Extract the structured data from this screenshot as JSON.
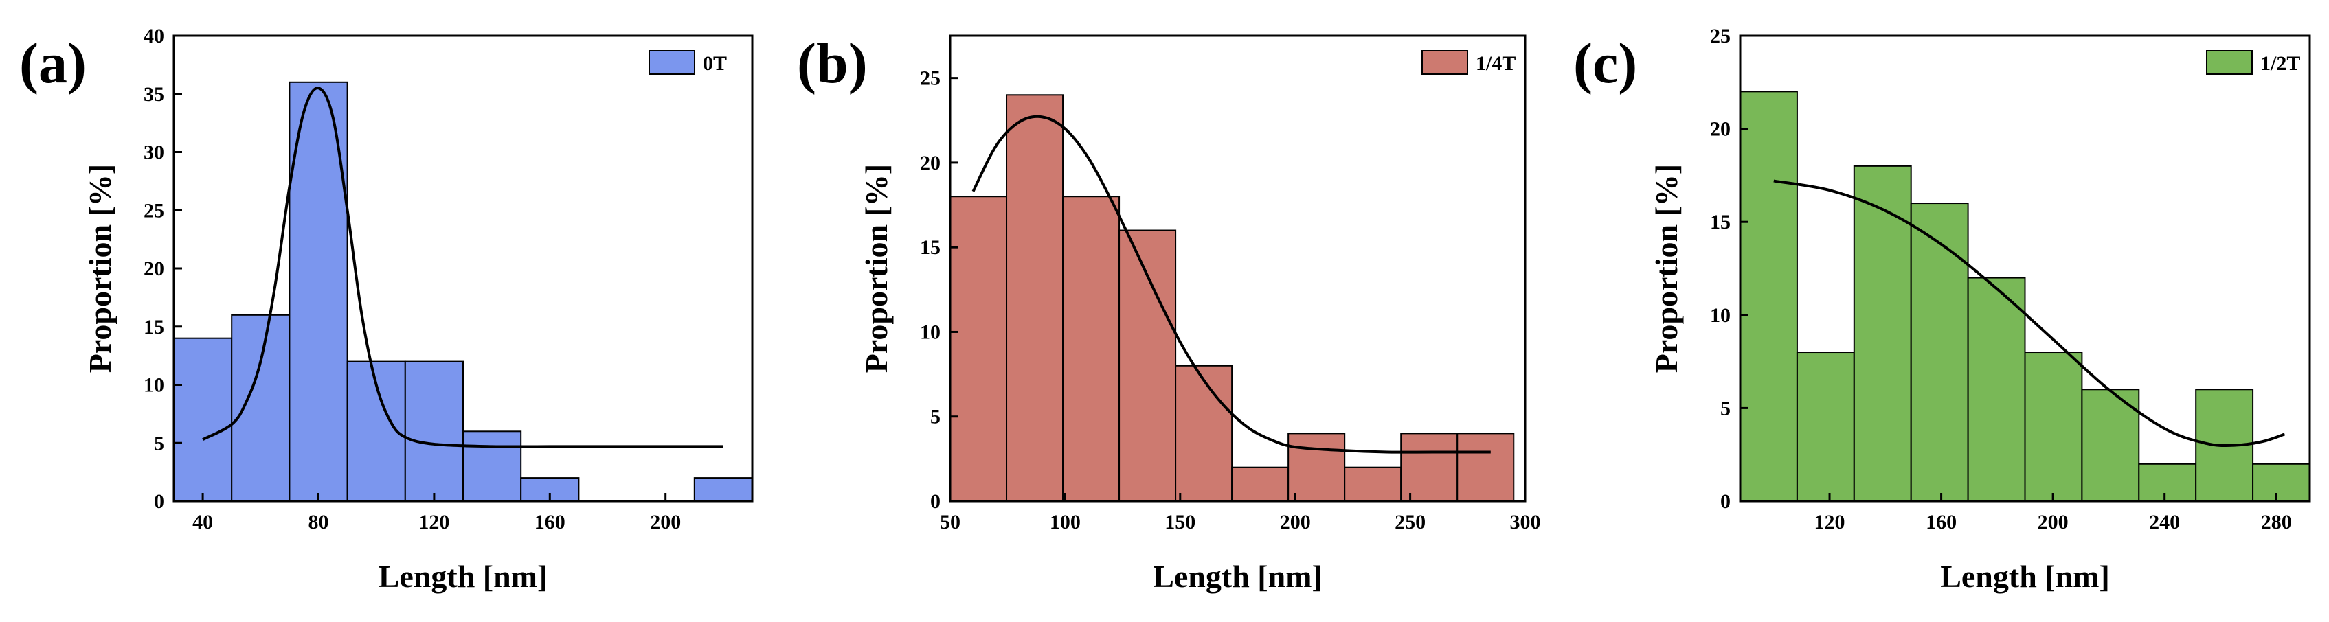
{
  "chart_data": [
    {
      "type": "bar",
      "panel_label": "(a)",
      "legend": [
        "0T"
      ],
      "legend_position": "top-right",
      "color": "#7b96ee",
      "xlabel": "Length [nm]",
      "ylabel": "Proportion [%]",
      "xlim": [
        30,
        230
      ],
      "ylim": [
        0,
        40
      ],
      "xticks": [
        40,
        80,
        120,
        160,
        200
      ],
      "yticks": [
        0,
        5,
        10,
        15,
        20,
        25,
        30,
        35,
        40
      ],
      "bin_edges": [
        30,
        50,
        70,
        90,
        110,
        130,
        150,
        170,
        190,
        210,
        230
      ],
      "values": [
        14,
        16,
        36,
        12,
        12,
        6,
        2,
        0,
        0,
        2
      ],
      "fit_curve": {
        "x": [
          40,
          50,
          55,
          60,
          65,
          70,
          75,
          80,
          85,
          90,
          95,
          100,
          105,
          110,
          120,
          140,
          160,
          180,
          200,
          220
        ],
        "y": [
          5.3,
          6.6,
          8.5,
          12.0,
          18.5,
          27.0,
          33.5,
          35.5,
          33.0,
          25.0,
          16.0,
          10.0,
          6.8,
          5.5,
          4.9,
          4.7,
          4.7,
          4.7,
          4.7,
          4.7
        ]
      }
    },
    {
      "type": "bar",
      "panel_label": "(b)",
      "legend": [
        "1/4T"
      ],
      "legend_position": "top-right",
      "color": "#cd7a70",
      "xlabel": "Length [nm]",
      "ylabel": "Proportion [%]",
      "xlim": [
        50,
        300
      ],
      "ylim": [
        0,
        27.5
      ],
      "xticks": [
        50,
        100,
        150,
        200,
        250,
        300
      ],
      "yticks": [
        0,
        5,
        10,
        15,
        20,
        25
      ],
      "bin_edges": [
        50,
        74.5,
        99,
        123.5,
        148,
        172.5,
        197,
        221.5,
        246,
        270.5,
        295
      ],
      "values": [
        18,
        24,
        18,
        16,
        8,
        2,
        4,
        2,
        4,
        4
      ],
      "fit_curve": {
        "x": [
          60,
          70,
          80,
          90,
          100,
          110,
          120,
          130,
          140,
          150,
          160,
          170,
          180,
          190,
          200,
          220,
          240,
          260,
          285
        ],
        "y": [
          18.3,
          21.0,
          22.4,
          22.7,
          22.0,
          20.3,
          17.8,
          15.0,
          12.1,
          9.4,
          7.2,
          5.5,
          4.3,
          3.6,
          3.2,
          3.0,
          2.9,
          2.9,
          2.9
        ]
      }
    },
    {
      "type": "bar",
      "panel_label": "(c)",
      "legend": [
        "1/2T"
      ],
      "legend_position": "top-right",
      "color": "#79b857",
      "xlabel": "Length [nm]",
      "ylabel": "Proportion [%]",
      "xlim": [
        88,
        292
      ],
      "ylim": [
        0,
        25
      ],
      "xticks": [
        120,
        160,
        200,
        240,
        280
      ],
      "yticks": [
        0,
        5,
        10,
        15,
        20,
        25
      ],
      "bin_edges": [
        88,
        108.4,
        128.8,
        149.2,
        169.6,
        190,
        210.4,
        230.8,
        251.2,
        271.6,
        292
      ],
      "values": [
        22,
        8,
        18,
        16,
        12,
        8,
        6,
        2,
        6,
        2
      ],
      "fit_curve": {
        "x": [
          100,
          120,
          140,
          160,
          180,
          200,
          220,
          240,
          255,
          265,
          275,
          283
        ],
        "y": [
          17.2,
          16.7,
          15.6,
          13.8,
          11.4,
          8.7,
          6.0,
          3.9,
          3.1,
          3.0,
          3.2,
          3.6
        ]
      }
    }
  ]
}
